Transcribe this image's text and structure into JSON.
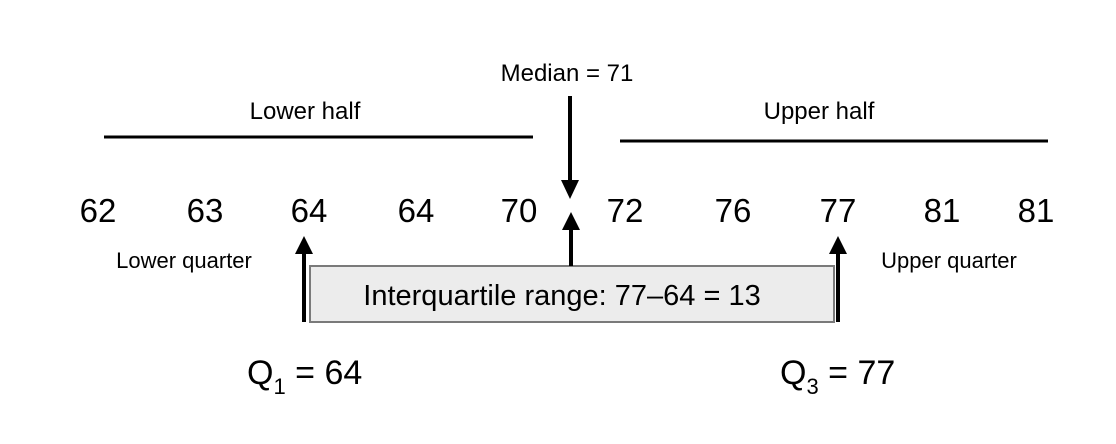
{
  "median_label": "Median = 71",
  "lower_half_label": "Lower half",
  "upper_half_label": "Upper half",
  "values": [
    "62",
    "63",
    "64",
    "64",
    "70",
    "72",
    "76",
    "77",
    "81",
    "81"
  ],
  "lower_quarter_label": "Lower quarter",
  "upper_quarter_label": "Upper quarter",
  "iqr_label": "Interquartile range: 77–64 = 13",
  "q1": {
    "letter": "Q",
    "subscript": "1",
    "value": " = 64"
  },
  "q3": {
    "letter": "Q",
    "subscript": "3",
    "value": " = 77"
  },
  "colors": {
    "box_fill": "#ececec",
    "box_stroke": "#7a7a7a",
    "line": "#000000"
  }
}
